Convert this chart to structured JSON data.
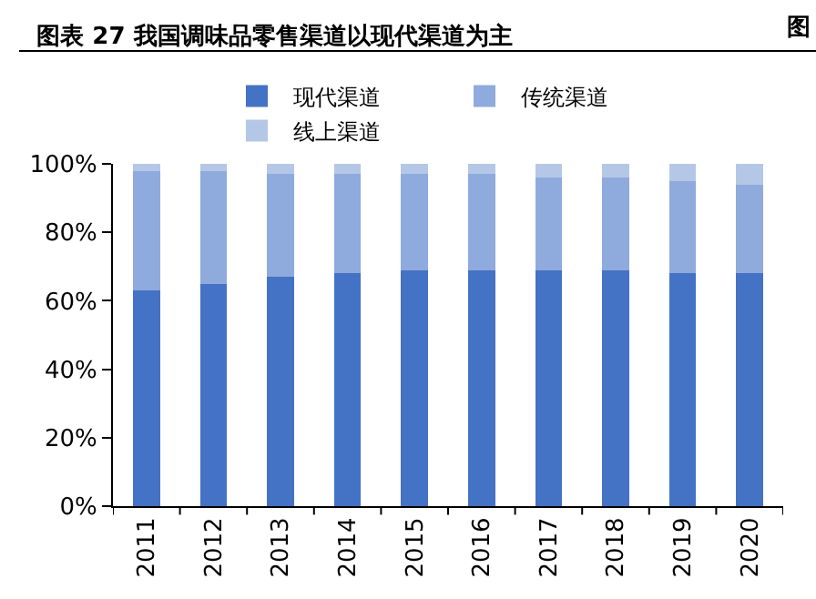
{
  "chart_data": {
    "type": "bar",
    "title": "图表 27 我国调味品零售渠道以现代渠道为主",
    "annotations": [
      "图"
    ],
    "categories": [
      "2011",
      "2012",
      "2013",
      "2014",
      "2015",
      "2016",
      "2017",
      "2018",
      "2019",
      "2020"
    ],
    "series": [
      {
        "name": "现代渠道",
        "color": "#4472c4",
        "values": [
          63,
          65,
          67,
          68,
          69,
          69,
          69,
          69,
          68,
          68
        ]
      },
      {
        "name": "传统渠道",
        "color": "#8faadc",
        "values": [
          35,
          33,
          30,
          29,
          28,
          28,
          27,
          27,
          27,
          26
        ]
      },
      {
        "name": "线上渠道",
        "color": "#b4c7e7",
        "values": [
          2,
          2,
          3,
          3,
          3,
          3,
          4,
          4,
          5,
          6
        ]
      }
    ],
    "stacked": true,
    "ylim": [
      0,
      100
    ],
    "yticks": [
      {
        "value": 0,
        "label": "0%"
      },
      {
        "value": 20,
        "label": "20%"
      },
      {
        "value": 40,
        "label": "40%"
      },
      {
        "value": 60,
        "label": "60%"
      },
      {
        "value": 80,
        "label": "80%"
      },
      {
        "value": 100,
        "label": "100%"
      }
    ],
    "legend": "top"
  }
}
